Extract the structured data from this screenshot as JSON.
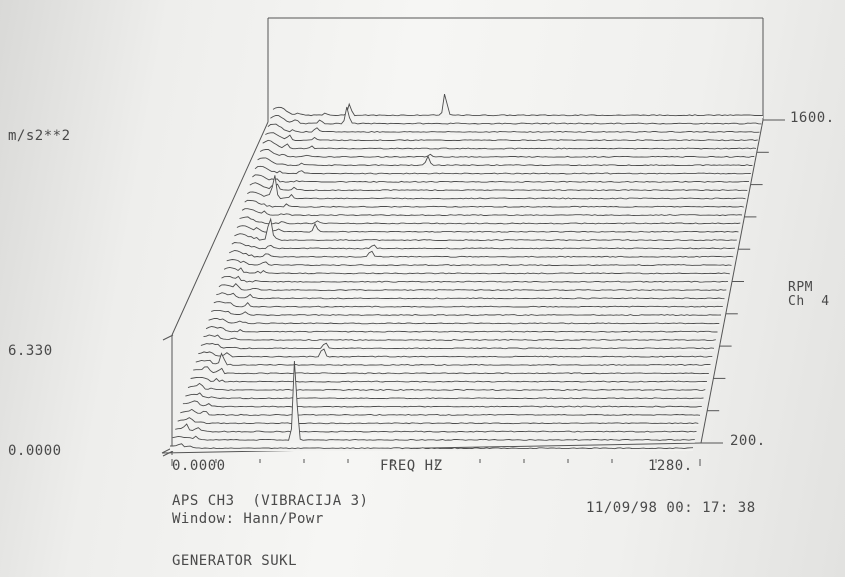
{
  "chart_data": {
    "type": "waterfall",
    "title": "",
    "zlabel": "m/s2**2",
    "z_ticks": [
      "6.330",
      "0.0000"
    ],
    "zlim": [
      0,
      6.33
    ],
    "xlabel": "FREQ HZ",
    "x_ticks": [
      "0.0000",
      "1280."
    ],
    "xlim": [
      0,
      1280
    ],
    "ylabel": "RPM",
    "ylabel2": "Ch  4",
    "y_ticks": [
      "1600.",
      "200."
    ],
    "ylim": [
      200,
      1600
    ],
    "traces": 40,
    "grid": false,
    "peaks": [
      {
        "rpm": 240,
        "freq": 300,
        "amp": 6.3
      },
      {
        "rpm": 540,
        "freq": 65,
        "amp": 0.9
      },
      {
        "rpm": 600,
        "freq": 310,
        "amp": 1.2
      },
      {
        "rpm": 1020,
        "freq": 360,
        "amp": 0.8
      },
      {
        "rpm": 1080,
        "freq": 90,
        "amp": 1.8
      },
      {
        "rpm": 1120,
        "freq": 200,
        "amp": 0.8
      },
      {
        "rpm": 1260,
        "freq": 70,
        "amp": 2.3
      },
      {
        "rpm": 1400,
        "freq": 440,
        "amp": 0.9
      },
      {
        "rpm": 1580,
        "freq": 200,
        "amp": 2.2
      },
      {
        "rpm": 1600,
        "freq": 450,
        "amp": 1.5
      }
    ]
  },
  "info": {
    "channel": "APS CH3  (VIBRACIJA 3)",
    "window": "Window: Hann/Powr",
    "timestamp": "11/09/98 00: 17: 38",
    "footer": "GENERATOR SUKL"
  }
}
